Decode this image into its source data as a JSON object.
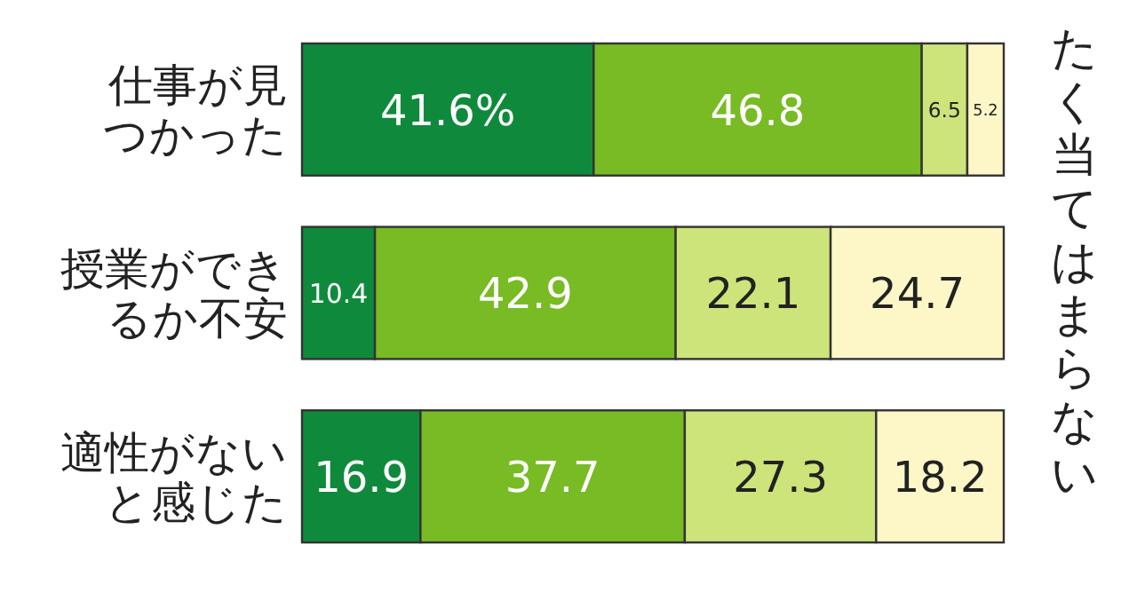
{
  "chart_data": {
    "type": "bar",
    "orientation": "horizontal",
    "stacked": true,
    "categories": [
      "仕事が見つかった",
      "授業ができるか不安",
      "適性がないと感じた"
    ],
    "series": [
      {
        "color": "#0f8a3c",
        "values": [
          41.6,
          10.4,
          16.9
        ],
        "value_labels": [
          "41.6%",
          "10.4",
          "16.9"
        ]
      },
      {
        "color": "#78bb24",
        "values": [
          46.8,
          42.9,
          37.7
        ],
        "value_labels": [
          "46.8",
          "42.9",
          "37.7"
        ]
      },
      {
        "color": "#cce47a",
        "values": [
          6.5,
          22.1,
          27.3
        ],
        "value_labels": [
          "6.5",
          "22.1",
          "27.3"
        ]
      },
      {
        "name": "たく当てはまらない",
        "color": "#fdf7c8",
        "values": [
          5.2,
          24.7,
          18.2
        ],
        "value_labels": [
          "5.2",
          "24.7",
          "18.2"
        ]
      }
    ]
  }
}
